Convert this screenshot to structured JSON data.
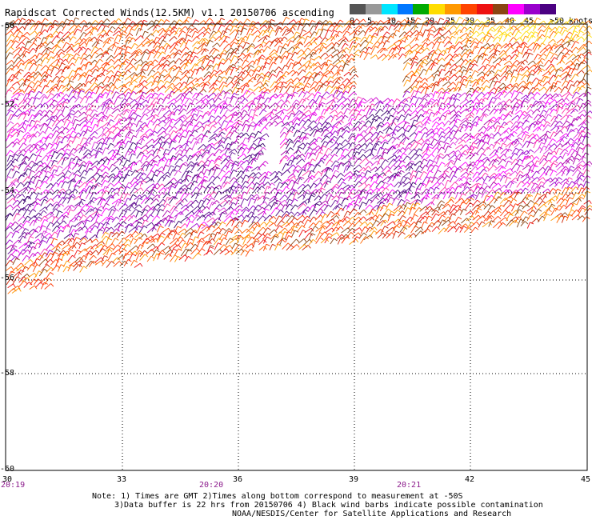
{
  "title": "Rapidscat Corrected Winds(12.5KM) v1.1 20150706 ascending",
  "colorbar": {
    "labels": [
      "0",
      "5",
      "10",
      "15",
      "20",
      "25",
      "30",
      "35",
      "40",
      "45",
      ">50 knots"
    ],
    "colors": [
      "#555555",
      "#999999",
      "#00e5ff",
      "#0077ff",
      "#00aa00",
      "#ffdd00",
      "#ff9900",
      "#ff4400",
      "#ee1111",
      "#8b4513",
      "#ff00ff",
      "#9900cc",
      "#4b0082"
    ]
  },
  "axes": {
    "lat_labels": [
      "-50",
      "-52",
      "-54",
      "-56",
      "-58",
      "-60"
    ],
    "lon_labels": [
      "30",
      "33",
      "36",
      "39",
      "42",
      "45"
    ],
    "time_labels": [
      "20:19",
      "20:20",
      "20:21"
    ]
  },
  "notes": {
    "line1": "Note: 1) Times are GMT 2)Times along bottom correspond to measurement at -50S",
    "line2": "3)Data buffer is 22 hrs from 20150706 4) Black wind barbs indicate possible contamination",
    "line3": "NOAA/NESDIS/Center for Satellite Applications and Research"
  }
}
